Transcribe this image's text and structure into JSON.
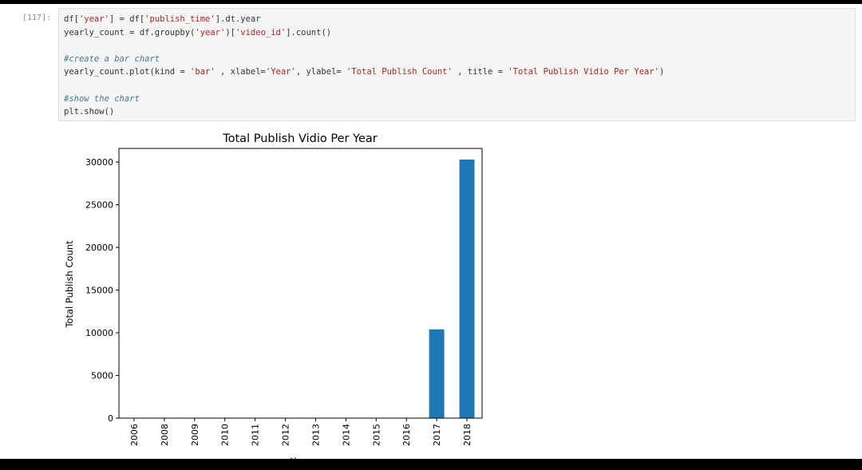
{
  "notebook": {
    "cell_prompt": "[117]:",
    "code": {
      "l1": {
        "a": "df[",
        "b": "'year'",
        "c": "] = df[",
        "d": "'publish_time'",
        "e": "].dt.year"
      },
      "l2": {
        "a": "yearly_count = df.groupby(",
        "b": "'year'",
        "c": ")[",
        "d": "'video_id'",
        "e": "].count()"
      },
      "l3": {
        "a": "#create a bar chart"
      },
      "l4": {
        "a": "yearly_count.plot(kind = ",
        "b": "'bar'",
        "c": " , xlabel=",
        "d": "'Year'",
        "e": ", ylabel= ",
        "f": "'Total Publish Count'",
        "g": " , title = ",
        "h": "'Total Publish Vidio Per Year'",
        "i": ")"
      },
      "l5": {
        "a": "#show the chart"
      },
      "l6": {
        "a": "plt.show()"
      }
    }
  },
  "chart_data": {
    "type": "bar",
    "title": "Total Publish Vidio Per Year",
    "xlabel": "Year",
    "ylabel": "Total Publish Count",
    "categories": [
      "2006",
      "2008",
      "2009",
      "2010",
      "2011",
      "2012",
      "2013",
      "2014",
      "2015",
      "2016",
      "2017",
      "2018"
    ],
    "values": [
      1,
      1,
      1,
      1,
      1,
      1,
      1,
      1,
      1,
      1,
      10400,
      30300
    ],
    "ylim": [
      0,
      31600
    ],
    "yticks": [
      0,
      5000,
      10000,
      15000,
      20000,
      25000,
      30000
    ],
    "bar_color": "#1f77b4",
    "grid": false,
    "legend": "none"
  }
}
